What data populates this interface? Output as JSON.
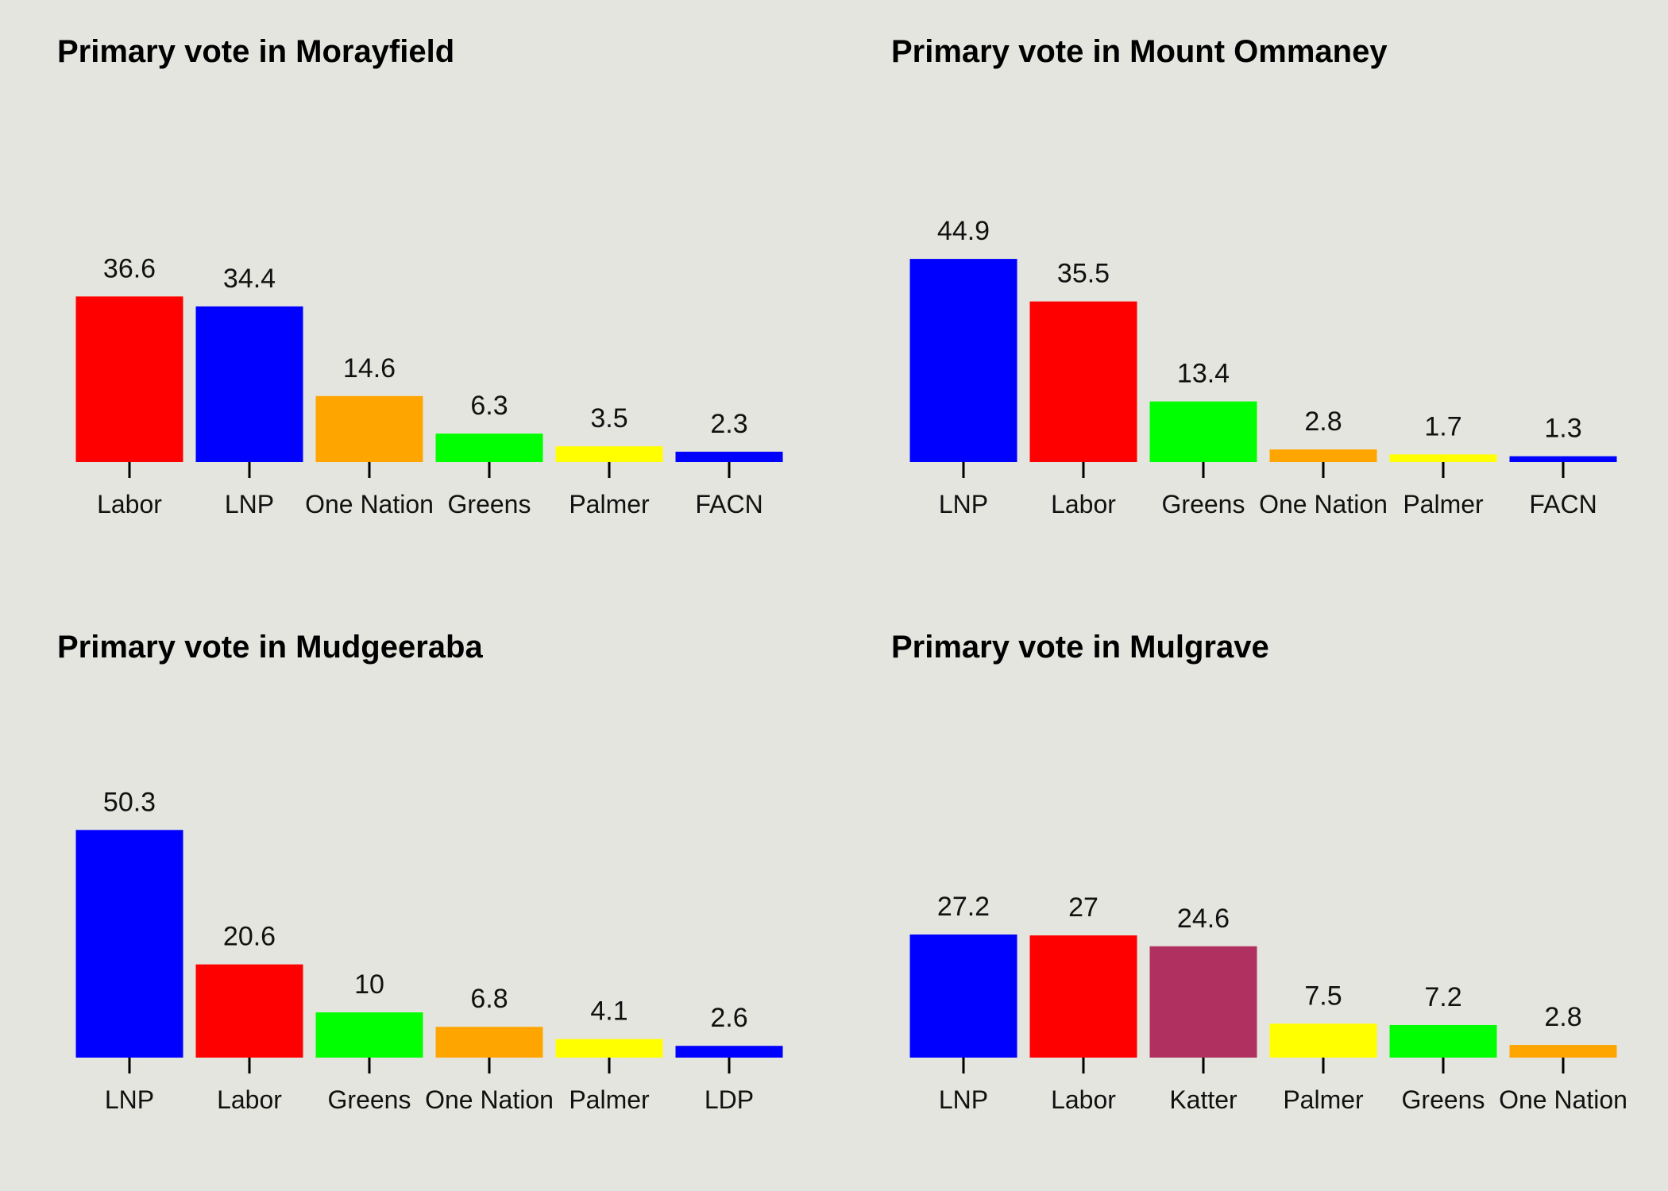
{
  "colors": {
    "background": "#e5e5df",
    "Labor": "#ff0000",
    "LNP": "#0000ff",
    "One Nation": "#ffa500",
    "Greens": "#00ff00",
    "Palmer": "#ffff00",
    "FACN": "#0000ff",
    "LDP": "#0000ff",
    "Katter": "#b03060"
  },
  "chart_data": [
    {
      "type": "bar",
      "title": "Primary vote in Morayfield",
      "categories": [
        "Labor",
        "LNP",
        "One Nation",
        "Greens",
        "Palmer",
        "FACN"
      ],
      "values": [
        36.6,
        34.4,
        14.6,
        6.3,
        3.5,
        2.3
      ],
      "value_labels": [
        "36.6",
        "34.4",
        "14.6",
        "6.3",
        "3.5",
        "2.3"
      ],
      "ylim": [
        0,
        60
      ],
      "grid": false,
      "legend": "none"
    },
    {
      "type": "bar",
      "title": "Primary vote in Mount Ommaney",
      "categories": [
        "LNP",
        "Labor",
        "Greens",
        "One Nation",
        "Palmer",
        "FACN"
      ],
      "values": [
        44.9,
        35.5,
        13.4,
        2.8,
        1.7,
        1.3
      ],
      "value_labels": [
        "44.9",
        "35.5",
        "13.4",
        "2.8",
        "1.7",
        "1.3"
      ],
      "ylim": [
        0,
        60
      ],
      "grid": false,
      "legend": "none"
    },
    {
      "type": "bar",
      "title": "Primary vote in Mudgeeraba",
      "categories": [
        "LNP",
        "Labor",
        "Greens",
        "One Nation",
        "Palmer",
        "LDP"
      ],
      "values": [
        50.3,
        20.6,
        10,
        6.8,
        4.1,
        2.6
      ],
      "value_labels": [
        "50.3",
        "20.6",
        "10",
        "6.8",
        "4.1",
        "2.6"
      ],
      "ylim": [
        0,
        60
      ],
      "grid": false,
      "legend": "none"
    },
    {
      "type": "bar",
      "title": "Primary vote in Mulgrave",
      "categories": [
        "LNP",
        "Labor",
        "Katter",
        "Palmer",
        "Greens",
        "One Nation"
      ],
      "values": [
        27.2,
        27,
        24.6,
        7.5,
        7.2,
        2.8
      ],
      "value_labels": [
        "27.2",
        "27",
        "24.6",
        "7.5",
        "7.2",
        "2.8"
      ],
      "ylim": [
        0,
        60
      ],
      "grid": false,
      "legend": "none"
    }
  ]
}
